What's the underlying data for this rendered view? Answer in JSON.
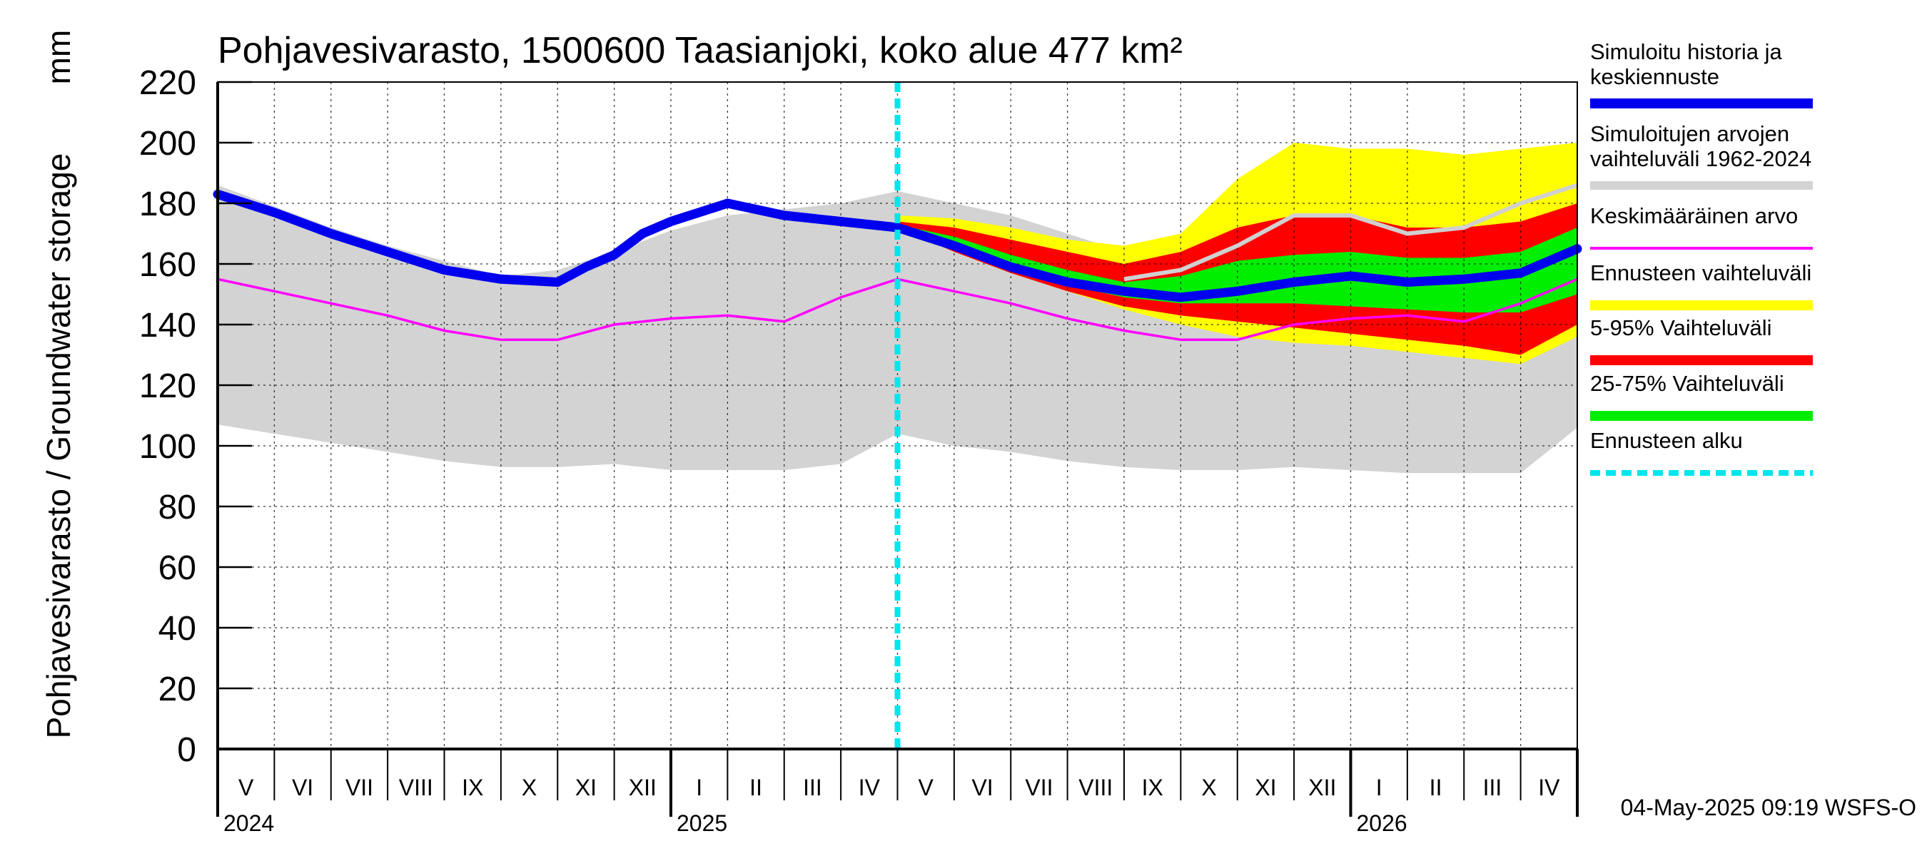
{
  "chart_data": {
    "type": "area",
    "title": "Pohjavesivarasto, 1500600 Taasianjoki, koko alue 477 km²",
    "ylabel": "Pohjavesivarasto / Groundwater storage",
    "yunit": "mm",
    "ylim": [
      0,
      220
    ],
    "yticks": [
      0,
      20,
      40,
      60,
      80,
      100,
      120,
      140,
      160,
      180,
      200,
      220
    ],
    "months": [
      "V",
      "VI",
      "VII",
      "VIII",
      "IX",
      "X",
      "XI",
      "XII",
      "I",
      "II",
      "III",
      "IV",
      "V",
      "VI",
      "VII",
      "VIII",
      "IX",
      "X",
      "XI",
      "XII",
      "I",
      "II",
      "III",
      "IV"
    ],
    "years": [
      {
        "label": "2024",
        "month_index": 0
      },
      {
        "label": "2025",
        "month_index": 8
      },
      {
        "label": "2026",
        "month_index": 20
      }
    ],
    "forecast_start_month": 12,
    "x_unit": "months since 1 May 2024",
    "series": [
      {
        "name": "Simuloitujen arvojen vaihteluväli 1962-2024",
        "role": "hist_range",
        "color": "#d3d3d3",
        "x": [
          0,
          1,
          2,
          3,
          4,
          5,
          6,
          7,
          8,
          9,
          10,
          11,
          12,
          13,
          14,
          15,
          16,
          17,
          18,
          19,
          20,
          21,
          22,
          23,
          24
        ],
        "low": [
          107,
          104,
          101,
          98,
          95,
          93,
          93,
          94,
          92,
          92,
          92,
          94,
          104,
          100,
          98,
          95,
          93,
          92,
          92,
          93,
          92,
          91,
          91,
          91,
          106
        ],
        "high": [
          186,
          179,
          172,
          166,
          161,
          156,
          158,
          164,
          171,
          176,
          178,
          180,
          184,
          180,
          176,
          170,
          164,
          161,
          168,
          176,
          174,
          172,
          176,
          182,
          186
        ]
      },
      {
        "name": "Ennusteen vaihteluväli",
        "role": "fc_full",
        "color": "#ffff00",
        "x": [
          12,
          13,
          14,
          15,
          16,
          17,
          18,
          19,
          20,
          21,
          22,
          23,
          24
        ],
        "low": [
          172,
          164,
          157,
          151,
          145,
          140,
          136,
          134,
          133,
          131,
          129,
          127,
          136
        ],
        "high": [
          176,
          175,
          172,
          168,
          166,
          170,
          188,
          200,
          198,
          198,
          196,
          198,
          200
        ]
      },
      {
        "name": "5-95% Vaihteluväli",
        "role": "fc_5_95",
        "color": "#ff0000",
        "x": [
          12,
          13,
          14,
          15,
          16,
          17,
          18,
          19,
          20,
          21,
          22,
          23,
          24
        ],
        "low": [
          172,
          164,
          157,
          151,
          146,
          143,
          141,
          139,
          137,
          135,
          133,
          130,
          140
        ],
        "high": [
          174,
          172,
          168,
          164,
          160,
          164,
          172,
          176,
          176,
          172,
          172,
          174,
          180
        ]
      },
      {
        "name": "25-75% Vaihteluväli",
        "role": "fc_25_75",
        "color": "#00ee00",
        "x": [
          12,
          13,
          14,
          15,
          16,
          17,
          18,
          19,
          20,
          21,
          22,
          23,
          24
        ],
        "low": [
          173,
          166,
          159,
          153,
          149,
          147,
          147,
          147,
          146,
          145,
          144,
          144,
          150
        ],
        "high": [
          173,
          169,
          163,
          158,
          154,
          156,
          161,
          163,
          164,
          162,
          162,
          164,
          172
        ]
      },
      {
        "name": "Keskimääräinen arvo",
        "role": "mean",
        "color": "#ff00ff",
        "x": [
          0,
          1,
          2,
          3,
          4,
          5,
          6,
          7,
          8,
          9,
          10,
          11,
          12,
          13,
          14,
          15,
          16,
          17,
          18,
          19,
          20,
          21,
          22,
          23,
          24
        ],
        "y": [
          155,
          151,
          147,
          143,
          138,
          135,
          135,
          140,
          142,
          143,
          141,
          149,
          155,
          151,
          147,
          142,
          138,
          135,
          135,
          140,
          142,
          143,
          141,
          147,
          155
        ]
      },
      {
        "name": "Simuloitu historia ja keskiennuste",
        "role": "sim",
        "color": "#0000ee",
        "x": [
          0,
          1,
          2,
          3,
          4,
          5,
          6,
          6.5,
          7,
          7.5,
          8,
          9,
          10,
          11,
          12,
          13,
          14,
          15,
          16,
          17,
          18,
          19,
          20,
          21,
          22,
          23,
          24
        ],
        "y": [
          183,
          177,
          170,
          164,
          158,
          155,
          154,
          159,
          163,
          170,
          174,
          180,
          176,
          174,
          172,
          166,
          159,
          154,
          151,
          149,
          151,
          154,
          156,
          154,
          155,
          157,
          165
        ]
      },
      {
        "name": "Simulated max (grey line)",
        "role": "sim_hi",
        "color": "#d0d0d0",
        "x": [
          16,
          17,
          18,
          19,
          20,
          21,
          22,
          23,
          24
        ],
        "y": [
          155,
          158,
          166,
          176,
          176,
          170,
          172,
          180,
          186
        ]
      }
    ],
    "legend": [
      {
        "label": "Simuloitu historia ja keskiennuste",
        "color": "#0000ee",
        "style": "line"
      },
      {
        "label": "Simuloitujen arvojen vaihteluväli 1962-2024",
        "color": "#d3d3d3",
        "style": "line"
      },
      {
        "label": "Keskimääräinen arvo",
        "color": "#ff00ff",
        "style": "thin"
      },
      {
        "label": "Ennusteen vaihteluväli",
        "color": "#ffff00",
        "style": "line"
      },
      {
        "label": "5-95% Vaihteluväli",
        "color": "#ff0000",
        "style": "line"
      },
      {
        "label": "25-75% Vaihteluväli",
        "color": "#00ee00",
        "style": "line"
      },
      {
        "label": "Ennusteen alku",
        "color": "#00e5ee",
        "style": "dash"
      }
    ],
    "legend_position": "right"
  },
  "legend_lines": [
    [
      "Simuloitu historia ja",
      "keskiennuste"
    ],
    [
      "Simuloitujen arvojen",
      "vaihteluväli 1962-2024"
    ],
    [
      "Keskimääräinen arvo"
    ],
    [
      "Ennusteen vaihteluväli"
    ],
    [
      "5-95% Vaihteluväli"
    ],
    [
      "25-75% Vaihteluväli"
    ],
    [
      "Ennusteen alku"
    ]
  ],
  "timestamp": "04-May-2025 09:19 WSFS-O"
}
